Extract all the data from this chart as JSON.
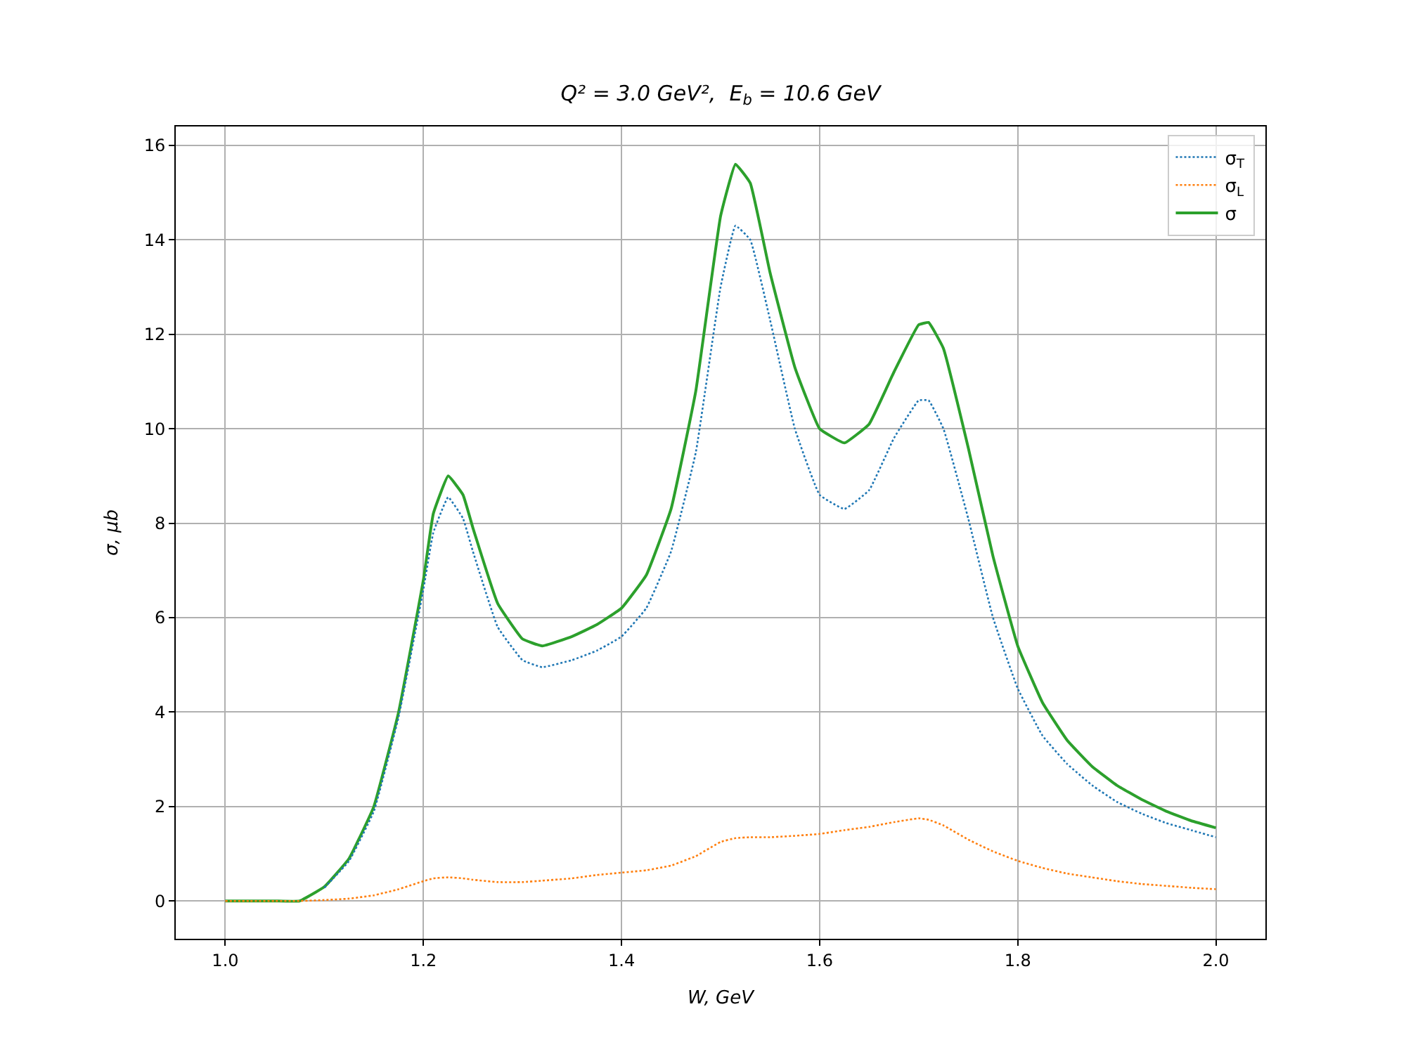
{
  "chart_data": {
    "type": "line",
    "title": "Q² = 3.0 GeV²,  E$_{b}$ = 10.6 GeV",
    "xlabel": "W, GeV",
    "ylabel": "σ, μb",
    "x": [
      1.0,
      1.025,
      1.05,
      1.075,
      1.1,
      1.125,
      1.15,
      1.175,
      1.2,
      1.21,
      1.225,
      1.24,
      1.25,
      1.275,
      1.3,
      1.32,
      1.35,
      1.375,
      1.4,
      1.425,
      1.45,
      1.475,
      1.5,
      1.515,
      1.53,
      1.55,
      1.575,
      1.6,
      1.625,
      1.65,
      1.675,
      1.7,
      1.71,
      1.725,
      1.75,
      1.775,
      1.8,
      1.825,
      1.85,
      1.875,
      1.9,
      1.925,
      1.95,
      1.975,
      2.0
    ],
    "series": [
      {
        "name": "σ$_{T}$",
        "color": "#1f77b4",
        "line_style": "dotted",
        "values": [
          null,
          null,
          null,
          null,
          0.28,
          0.85,
          1.9,
          3.9,
          6.6,
          7.8,
          8.55,
          8.1,
          7.4,
          5.8,
          5.1,
          4.95,
          5.1,
          5.3,
          5.6,
          6.2,
          7.4,
          9.5,
          13.0,
          14.3,
          14.0,
          12.3,
          10.0,
          8.6,
          8.3,
          8.7,
          9.8,
          10.6,
          10.6,
          10.0,
          8.1,
          6.0,
          4.5,
          3.5,
          2.9,
          2.45,
          2.1,
          1.85,
          1.65,
          1.5,
          1.35
        ]
      },
      {
        "name": "σ$_{L}$",
        "color": "#ff7f0e",
        "line_style": "dotted",
        "values": [
          0,
          0,
          0,
          0,
          0.02,
          0.05,
          0.12,
          0.25,
          0.42,
          0.48,
          0.5,
          0.48,
          0.45,
          0.4,
          0.4,
          0.43,
          0.48,
          0.55,
          0.6,
          0.65,
          0.75,
          0.95,
          1.25,
          1.33,
          1.35,
          1.35,
          1.38,
          1.42,
          1.5,
          1.57,
          1.67,
          1.75,
          1.72,
          1.6,
          1.3,
          1.05,
          0.85,
          0.7,
          0.58,
          0.5,
          0.42,
          0.36,
          0.32,
          0.28,
          0.25
        ]
      },
      {
        "name": "σ",
        "color": "#2ca02c",
        "line_style": "solid",
        "values": [
          0,
          0,
          0,
          0,
          0.3,
          0.9,
          2.0,
          4.0,
          6.8,
          8.2,
          9.0,
          8.6,
          7.9,
          6.3,
          5.55,
          5.4,
          5.6,
          5.85,
          6.2,
          6.9,
          8.3,
          10.8,
          14.5,
          15.6,
          15.2,
          13.3,
          11.3,
          10.0,
          9.7,
          10.1,
          11.2,
          12.2,
          12.25,
          11.7,
          9.6,
          7.3,
          5.4,
          4.2,
          3.4,
          2.85,
          2.45,
          2.15,
          1.9,
          1.7,
          1.55
        ]
      }
    ],
    "xlim": [
      0.95,
      2.05
    ],
    "ylim": [
      -0.8,
      16.4
    ],
    "xticks": [
      {
        "value": 1.0,
        "label": "1.0"
      },
      {
        "value": 1.2,
        "label": "1.2"
      },
      {
        "value": 1.4,
        "label": "1.4"
      },
      {
        "value": 1.6,
        "label": "1.6"
      },
      {
        "value": 1.8,
        "label": "1.8"
      },
      {
        "value": 2.0,
        "label": "2.0"
      }
    ],
    "yticks": [
      0,
      2,
      4,
      6,
      8,
      10,
      12,
      14,
      16
    ],
    "grid": true,
    "legend": "top right",
    "marker": "none"
  }
}
